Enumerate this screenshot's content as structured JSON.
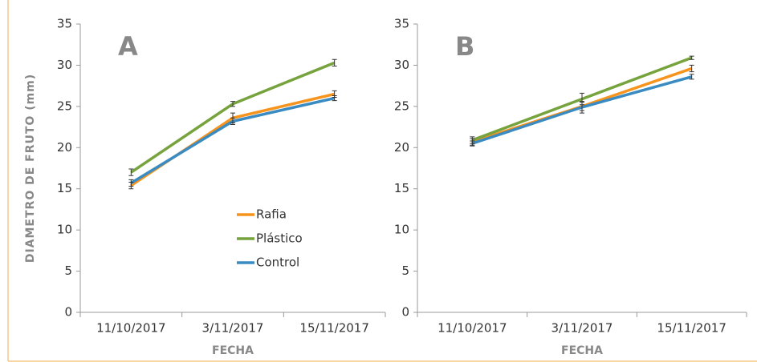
{
  "chart_data": [
    {
      "type": "line",
      "title": "A",
      "y_label": "DIAMETRO DE FRUTO (mm)",
      "x_label": "FECHA",
      "categories": [
        "11/10/2017",
        "3/11/2017",
        "15/11/2017"
      ],
      "ylim": [
        0,
        35
      ],
      "yticks": [
        0,
        5,
        10,
        15,
        20,
        25,
        30,
        35
      ],
      "legend": "center",
      "series": [
        {
          "name": "Rafia",
          "color": "#f7941d",
          "values": [
            15.4,
            23.6,
            26.5
          ],
          "errors": [
            0.4,
            0.6,
            0.4
          ]
        },
        {
          "name": "Plástico",
          "color": "#77a33e",
          "values": [
            17.0,
            25.3,
            30.3
          ],
          "errors": [
            0.4,
            0.3,
            0.4
          ]
        },
        {
          "name": "Control",
          "color": "#3a8bc2",
          "values": [
            15.7,
            23.2,
            26.0
          ],
          "errors": [
            0.4,
            0.4,
            0.3
          ]
        }
      ]
    },
    {
      "type": "line",
      "title": "B",
      "x_label": "FECHA",
      "categories": [
        "11/10/2017",
        "3/11/2017",
        "15/11/2017"
      ],
      "ylim": [
        0,
        35
      ],
      "yticks": [
        0,
        5,
        10,
        15,
        20,
        25,
        30,
        35
      ],
      "series": [
        {
          "name": "Rafia",
          "color": "#f7941d",
          "values": [
            20.7,
            25.0,
            29.6
          ],
          "errors": [
            0.4,
            0.5,
            0.4
          ]
        },
        {
          "name": "Plástico",
          "color": "#77a33e",
          "values": [
            20.9,
            25.9,
            30.9
          ],
          "errors": [
            0.4,
            0.7,
            0.2
          ]
        },
        {
          "name": "Control",
          "color": "#3a8bc2",
          "values": [
            20.5,
            24.9,
            28.6
          ],
          "errors": [
            0.3,
            0.7,
            0.3
          ]
        }
      ]
    }
  ]
}
